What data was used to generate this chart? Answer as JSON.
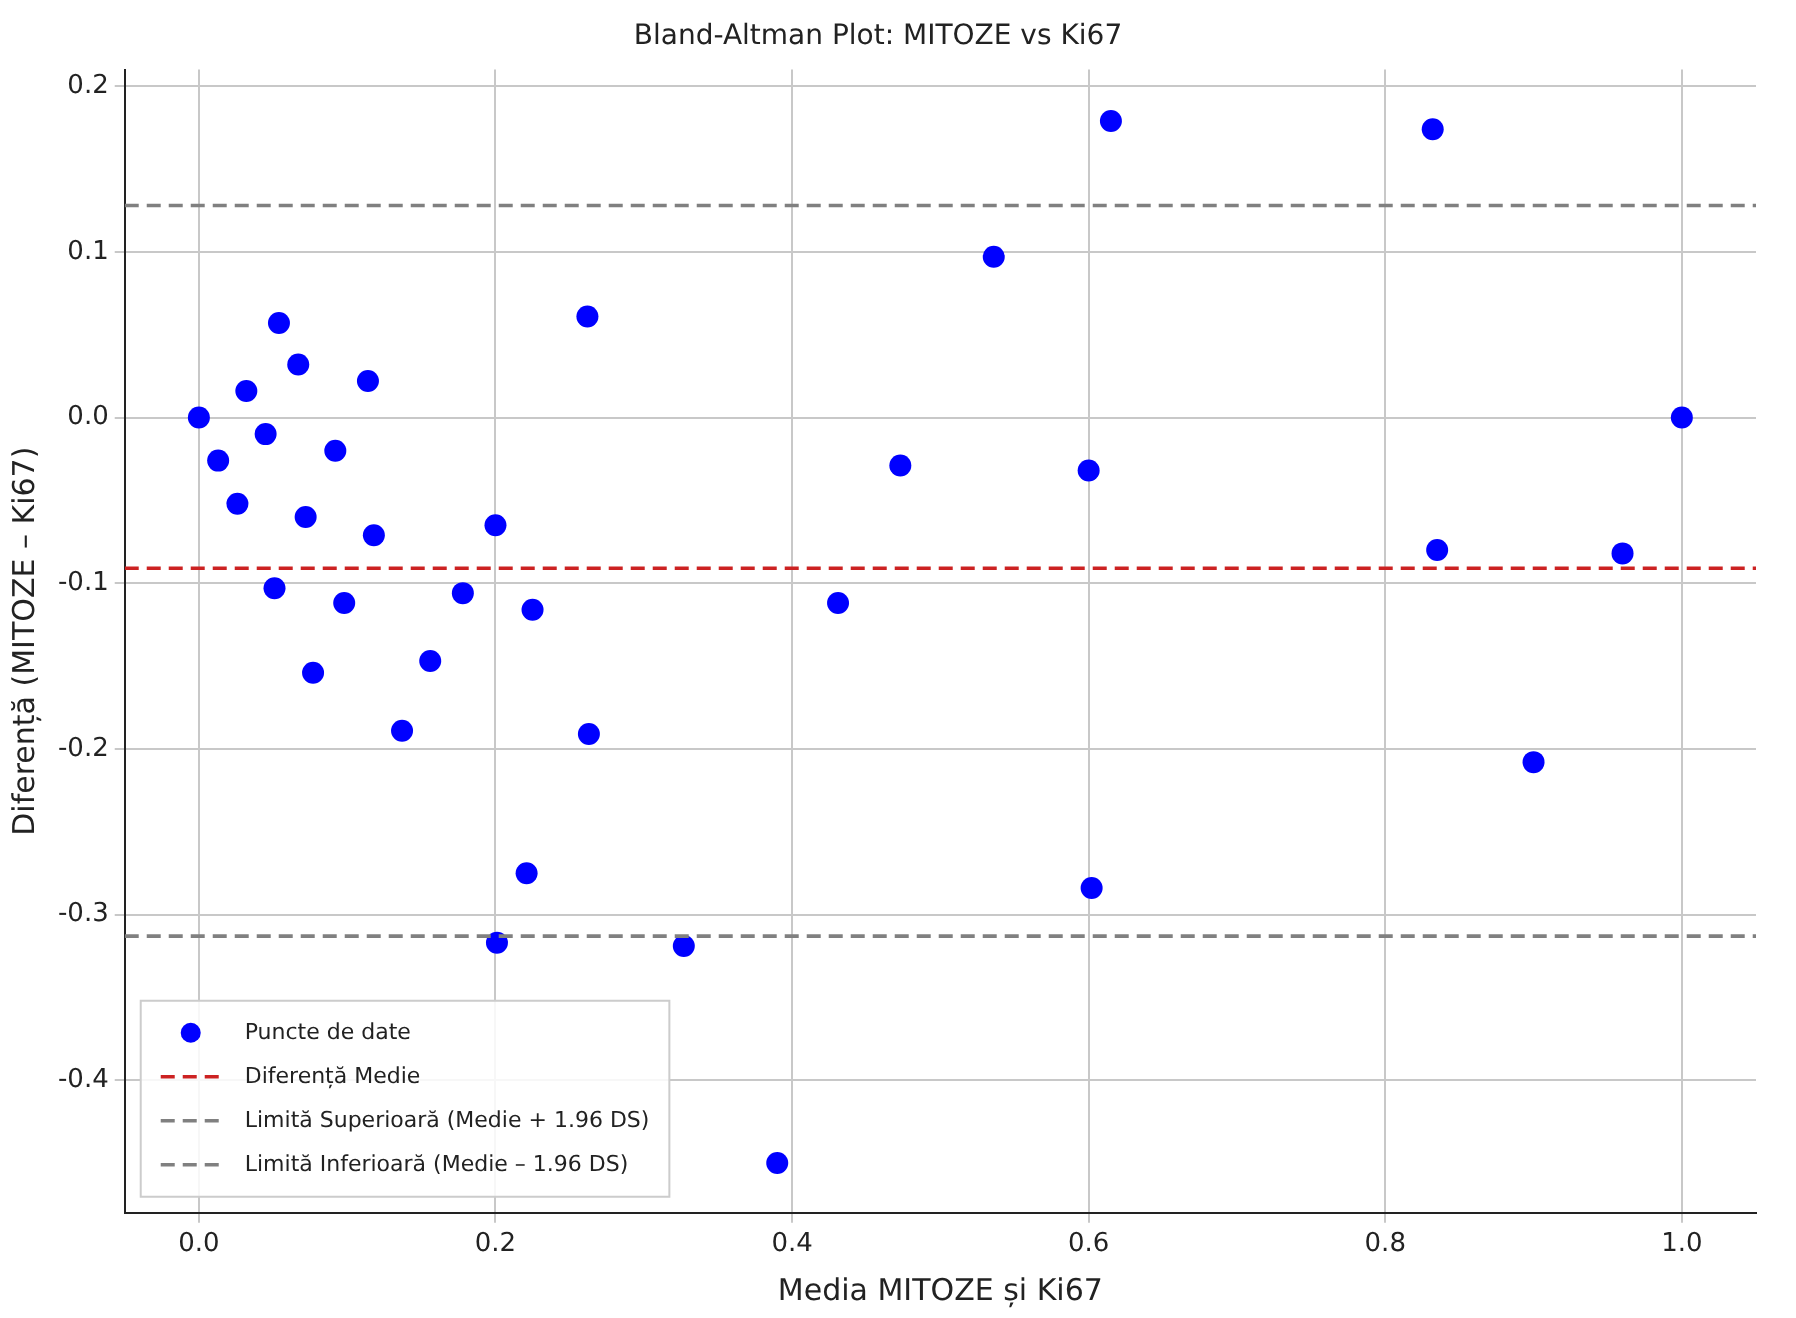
{
  "chart_data": {
    "type": "scatter",
    "title": "Bland-Altman Plot: MITOZE vs Ki67",
    "xlabel": "Media MITOZE și Ki67",
    "ylabel": "Diferență (MITOZE – Ki67)",
    "series": [
      {
        "name": "Puncte de date",
        "color": "#0000ff",
        "x": [
          0,
          0.054,
          0.067,
          0.032,
          0.114,
          0.045,
          0.092,
          0.013,
          0.026,
          0.072,
          0.118,
          0.2,
          0.051,
          0.098,
          0.178,
          0.225,
          0.077,
          0.156,
          0.137,
          0.263,
          0.262,
          0.221,
          0.201,
          0.327,
          0.39,
          0.431,
          0.473,
          0.536,
          0.615,
          0.6,
          0.602,
          0.832,
          0.835,
          1.0,
          0.96,
          0.9
        ],
        "values": [
          0,
          0.057,
          0.032,
          0.016,
          0.022,
          -0.01,
          -0.02,
          -0.026,
          -0.052,
          -0.06,
          -0.071,
          -0.065,
          -0.103,
          -0.112,
          -0.106,
          -0.116,
          -0.154,
          -0.147,
          -0.189,
          -0.191,
          0.061,
          -0.275,
          -0.317,
          -0.319,
          -0.45,
          -0.112,
          -0.029,
          0.097,
          0.179,
          -0.032,
          -0.284,
          0.174,
          -0.08,
          0,
          -0.082,
          -0.208
        ]
      }
    ],
    "ref_lines": [
      {
        "axis": "y",
        "value": -0.091,
        "label": "Diferență Medie",
        "color": "#cc2222",
        "line_style": "dashed"
      },
      {
        "axis": "y",
        "value": 0.128,
        "label": "Limită Superioară (Medie + 1.96 DS)",
        "color": "#808080",
        "line_style": "dashed"
      },
      {
        "axis": "y",
        "value": -0.313,
        "label": "Limită Inferioară (Medie – 1.96 DS)",
        "color": "#808080",
        "line_style": "dashed"
      }
    ],
    "xlim": [
      -0.05,
      1.05
    ],
    "ylim": [
      -0.48,
      0.21
    ],
    "xticks": [
      {
        "value": 0,
        "label": "0.0"
      },
      0.2,
      0.4,
      0.6,
      0.8,
      {
        "value": 1,
        "label": "1.0"
      }
    ],
    "yticks": [
      -0.4,
      -0.3,
      -0.2,
      -0.1,
      {
        "value": 0,
        "label": "0.0"
      },
      0.1,
      0.2
    ],
    "grid": true,
    "legend": "bottom left",
    "marker": "circle"
  }
}
